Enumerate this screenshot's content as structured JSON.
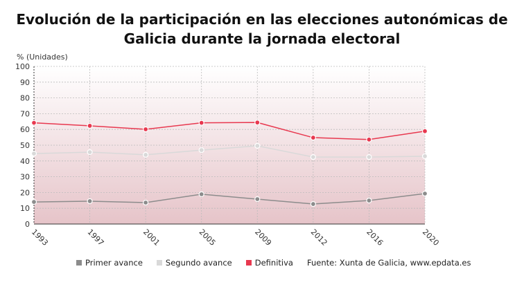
{
  "chart_data": {
    "type": "line",
    "title": "Evolución de la participación en las elecciones autonómicas de Galicia durante la jornada electoral",
    "ylabel": "% (Unidades)",
    "xlabel": "",
    "categories": [
      "1993",
      "1997",
      "2001",
      "2005",
      "2009",
      "2012",
      "2016",
      "2020"
    ],
    "ylim": [
      0,
      100
    ],
    "yticks": [
      0,
      10,
      20,
      30,
      40,
      50,
      60,
      70,
      80,
      90,
      100
    ],
    "grid": true,
    "legend_position": "bottom",
    "series": [
      {
        "name": "Primer avance",
        "color": "#8c8c8c",
        "values": [
          14.0,
          14.5,
          13.6,
          18.9,
          15.8,
          12.7,
          14.9,
          19.3
        ]
      },
      {
        "name": "Segundo avance",
        "color": "#d9d9d9",
        "values": [
          44.7,
          45.6,
          43.9,
          46.9,
          49.6,
          42.5,
          42.5,
          43.0
        ]
      },
      {
        "name": "Definitiva",
        "color": "#e8384f",
        "values": [
          64.2,
          62.3,
          60.1,
          64.2,
          64.4,
          54.8,
          53.6,
          58.9
        ]
      }
    ],
    "source": "Fuente: Xunta de Galicia, www.epdata.es"
  }
}
